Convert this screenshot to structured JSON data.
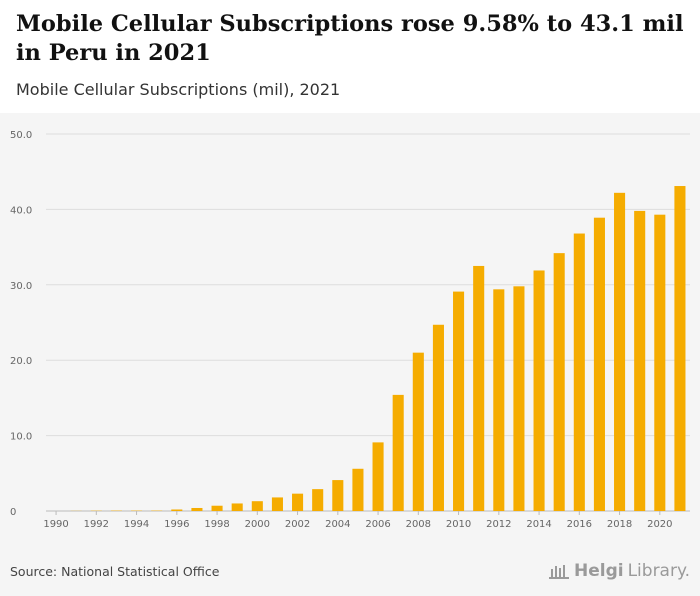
{
  "header": {
    "title": "Mobile Cellular Subscriptions rose 9.58% to 43.1 mil in Peru in 2021",
    "subtitle": "Mobile Cellular Subscriptions (mil), 2021"
  },
  "footer": {
    "source": "Source: National Statistical Office",
    "logo_helgi": "Helgi",
    "logo_library": "Library."
  },
  "colors": {
    "bar": "#f5ac00",
    "grid": "#dddddd",
    "background": "#f5f5f5"
  },
  "chart_data": {
    "type": "bar",
    "title": "Mobile Cellular Subscriptions rose 9.58% to 43.1 mil in Peru in 2021",
    "subtitle": "Mobile Cellular Subscriptions (mil), 2021",
    "xlabel": "",
    "ylabel": "",
    "ylim": [
      0,
      50
    ],
    "yticks": [
      0,
      10,
      20,
      30,
      40,
      50
    ],
    "ytick_labels": [
      "0",
      "10.0",
      "20.0",
      "30.0",
      "40.0",
      "50.0"
    ],
    "grid": true,
    "categories": [
      1990,
      1991,
      1992,
      1993,
      1994,
      1995,
      1996,
      1997,
      1998,
      1999,
      2000,
      2001,
      2002,
      2003,
      2004,
      2005,
      2006,
      2007,
      2008,
      2009,
      2010,
      2011,
      2012,
      2013,
      2014,
      2015,
      2016,
      2017,
      2018,
      2019,
      2020,
      2021
    ],
    "xtick_labels": [
      "1990",
      "1992",
      "1994",
      "1996",
      "1998",
      "2000",
      "2002",
      "2004",
      "2006",
      "2008",
      "2010",
      "2012",
      "2014",
      "2016",
      "2018",
      "2020"
    ],
    "values": [
      0.0,
      0.02,
      0.04,
      0.05,
      0.05,
      0.05,
      0.2,
      0.4,
      0.7,
      1.0,
      1.3,
      1.8,
      2.3,
      2.9,
      4.1,
      5.6,
      9.1,
      15.4,
      21.0,
      24.7,
      29.1,
      32.5,
      29.4,
      29.8,
      31.9,
      34.2,
      36.8,
      38.9,
      42.2,
      39.8,
      39.3,
      43.1
    ]
  }
}
